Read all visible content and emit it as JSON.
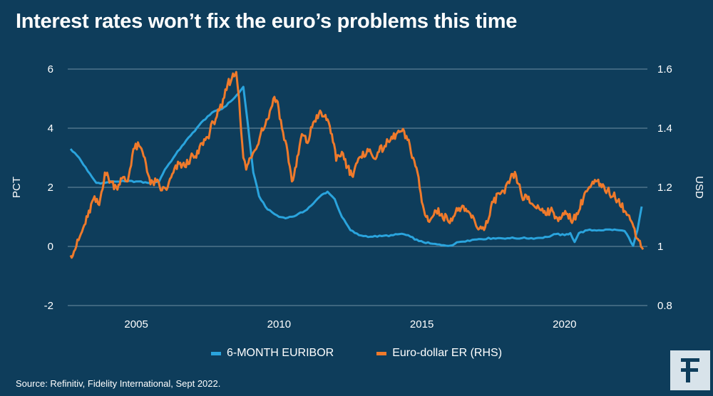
{
  "title": "Interest rates won’t fix the euro’s problems this time",
  "source": "Source: Refinitiv, Fidelity International, Sept 2022.",
  "legend": {
    "series1": "6-MONTH EURIBOR",
    "series2": "Euro-dollar ER (RHS)"
  },
  "logo_icon": "fidelity-f-logo",
  "colors": {
    "background": "#0e3d5b",
    "euribor": "#2aa4dd",
    "eurusd": "#ef7a2b",
    "grid": "#6f8fa3"
  },
  "chart_data": {
    "type": "line",
    "ylabel_left": "PCT",
    "ylabel_right": "USD",
    "x_ticks": [
      "2005",
      "2010",
      "2015",
      "2020"
    ],
    "y_left_ticks": [
      "-2",
      "0",
      "2",
      "4",
      "6"
    ],
    "y_right_ticks": [
      "0.8",
      "1",
      "1.2",
      "1.4",
      "1.6"
    ],
    "ylim_left": [
      -2,
      6
    ],
    "ylim_right": [
      0.8,
      1.6
    ],
    "xlim": [
      2002.6,
      2022.9
    ],
    "grid": "horizontal",
    "legend_position": "bottom-center",
    "series": [
      {
        "name": "6-MONTH EURIBOR",
        "axis": "left",
        "x": [
          2002.7,
          2003.0,
          2003.3,
          2003.6,
          2003.9,
          2004.2,
          2004.6,
          2005.0,
          2005.4,
          2005.8,
          2006.0,
          2006.3,
          2006.6,
          2006.9,
          2007.2,
          2007.5,
          2007.8,
          2008.0,
          2008.3,
          2008.6,
          2008.75,
          2008.9,
          2009.1,
          2009.3,
          2009.6,
          2010.0,
          2010.3,
          2010.6,
          2010.9,
          2011.2,
          2011.5,
          2011.7,
          2011.95,
          2012.2,
          2012.5,
          2012.8,
          2013.2,
          2013.6,
          2014.0,
          2014.3,
          2014.6,
          2014.9,
          2015.3,
          2015.7,
          2016.0,
          2016.3,
          2016.6,
          2017.0,
          2017.5,
          2018.0,
          2018.5,
          2019.0,
          2019.4,
          2019.7,
          2020.0,
          2020.2,
          2020.35,
          2020.5,
          2020.8,
          2021.2,
          2021.6,
          2021.9,
          2022.1,
          2022.25,
          2022.4,
          2022.55,
          2022.7
        ],
        "y": [
          3.3,
          3.0,
          2.55,
          2.15,
          2.15,
          2.2,
          2.2,
          2.2,
          2.15,
          2.2,
          2.6,
          3.0,
          3.4,
          3.75,
          4.1,
          4.4,
          4.6,
          4.65,
          4.9,
          5.2,
          5.4,
          4.2,
          2.5,
          1.7,
          1.25,
          1.0,
          0.97,
          1.05,
          1.2,
          1.45,
          1.75,
          1.85,
          1.6,
          1.0,
          0.55,
          0.38,
          0.33,
          0.35,
          0.38,
          0.43,
          0.33,
          0.18,
          0.1,
          0.04,
          0.03,
          0.15,
          0.2,
          0.25,
          0.28,
          0.28,
          0.28,
          0.28,
          0.32,
          0.42,
          0.38,
          0.45,
          0.15,
          0.45,
          0.55,
          0.55,
          0.57,
          0.55,
          0.52,
          0.3,
          0.02,
          0.55,
          1.35
        ]
      },
      {
        "name": "Euro-dollar ER (RHS)",
        "axis": "right",
        "x": [
          2002.7,
          2002.9,
          2003.1,
          2003.3,
          2003.5,
          2003.7,
          2003.9,
          2004.1,
          2004.3,
          2004.5,
          2004.7,
          2004.9,
          2005.1,
          2005.3,
          2005.5,
          2005.7,
          2005.9,
          2006.1,
          2006.3,
          2006.5,
          2006.7,
          2006.9,
          2007.1,
          2007.3,
          2007.5,
          2007.7,
          2007.9,
          2008.0,
          2008.2,
          2008.35,
          2008.5,
          2008.6,
          2008.75,
          2008.85,
          2009.0,
          2009.2,
          2009.4,
          2009.6,
          2009.8,
          2009.95,
          2010.1,
          2010.3,
          2010.45,
          2010.6,
          2010.8,
          2011.0,
          2011.2,
          2011.4,
          2011.55,
          2011.7,
          2011.85,
          2012.0,
          2012.2,
          2012.4,
          2012.55,
          2012.7,
          2012.9,
          2013.1,
          2013.3,
          2013.5,
          2013.7,
          2013.9,
          2014.1,
          2014.3,
          2014.5,
          2014.7,
          2014.85,
          2015.0,
          2015.15,
          2015.3,
          2015.5,
          2015.7,
          2015.9,
          2016.1,
          2016.3,
          2016.5,
          2016.7,
          2016.9,
          2017.1,
          2017.3,
          2017.5,
          2017.7,
          2017.9,
          2018.1,
          2018.3,
          2018.5,
          2018.7,
          2018.9,
          2019.1,
          2019.3,
          2019.5,
          2019.7,
          2019.9,
          2020.1,
          2020.3,
          2020.5,
          2020.7,
          2020.9,
          2021.1,
          2021.3,
          2021.5,
          2021.7,
          2021.9,
          2022.1,
          2022.3,
          2022.45,
          2022.6,
          2022.75
        ],
        "y": [
          0.97,
          1.0,
          1.05,
          1.1,
          1.16,
          1.14,
          1.25,
          1.22,
          1.2,
          1.23,
          1.22,
          1.33,
          1.34,
          1.3,
          1.21,
          1.22,
          1.19,
          1.2,
          1.25,
          1.28,
          1.27,
          1.3,
          1.3,
          1.35,
          1.37,
          1.42,
          1.46,
          1.47,
          1.55,
          1.57,
          1.59,
          1.5,
          1.3,
          1.26,
          1.3,
          1.33,
          1.4,
          1.43,
          1.5,
          1.49,
          1.4,
          1.32,
          1.22,
          1.27,
          1.38,
          1.35,
          1.42,
          1.45,
          1.44,
          1.43,
          1.38,
          1.29,
          1.32,
          1.27,
          1.24,
          1.28,
          1.3,
          1.33,
          1.3,
          1.32,
          1.34,
          1.36,
          1.38,
          1.39,
          1.36,
          1.3,
          1.25,
          1.15,
          1.1,
          1.09,
          1.12,
          1.11,
          1.09,
          1.1,
          1.13,
          1.12,
          1.11,
          1.07,
          1.06,
          1.08,
          1.15,
          1.18,
          1.18,
          1.23,
          1.24,
          1.17,
          1.16,
          1.14,
          1.13,
          1.12,
          1.12,
          1.1,
          1.1,
          1.11,
          1.09,
          1.12,
          1.18,
          1.2,
          1.22,
          1.2,
          1.19,
          1.17,
          1.16,
          1.12,
          1.09,
          1.06,
          1.02,
          0.99
        ]
      }
    ]
  }
}
